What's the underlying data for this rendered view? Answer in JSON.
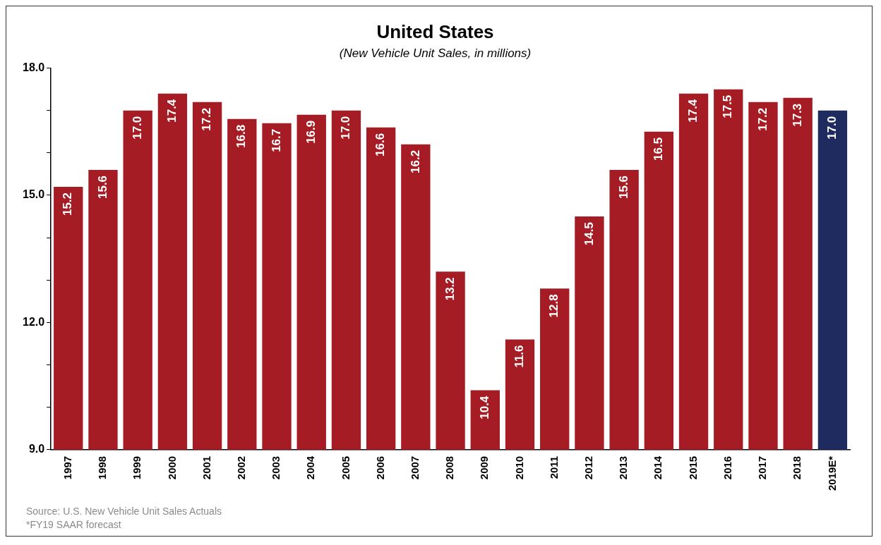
{
  "chart_data": {
    "type": "bar",
    "title": "United States",
    "subtitle": "(New Vehicle Unit Sales, in millions)",
    "categories": [
      "1997",
      "1998",
      "1999",
      "2000",
      "2001",
      "2002",
      "2003",
      "2004",
      "2005",
      "2006",
      "2007",
      "2008",
      "2009",
      "2010",
      "2011",
      "2012",
      "2013",
      "2014",
      "2015",
      "2016",
      "2017",
      "2018",
      "2019E*"
    ],
    "values": [
      15.2,
      15.6,
      17.0,
      17.4,
      17.2,
      16.8,
      16.7,
      16.9,
      17.0,
      16.6,
      16.2,
      13.2,
      10.4,
      11.6,
      12.8,
      14.5,
      15.6,
      16.5,
      17.4,
      17.5,
      17.2,
      17.3,
      17.0
    ],
    "colors": [
      "#a51c24",
      "#a51c24",
      "#a51c24",
      "#a51c24",
      "#a51c24",
      "#a51c24",
      "#a51c24",
      "#a51c24",
      "#a51c24",
      "#a51c24",
      "#a51c24",
      "#a51c24",
      "#a51c24",
      "#a51c24",
      "#a51c24",
      "#a51c24",
      "#a51c24",
      "#a51c24",
      "#a51c24",
      "#a51c24",
      "#a51c24",
      "#a51c24",
      "#1f2a5e"
    ],
    "ylim": [
      9,
      18
    ],
    "yticks": [
      {
        "value": 9,
        "label": "9.0"
      },
      {
        "value": 10,
        "label": null
      },
      {
        "value": 11,
        "label": null
      },
      {
        "value": 12,
        "label": "12.0"
      },
      {
        "value": 13,
        "label": null
      },
      {
        "value": 14,
        "label": null
      },
      {
        "value": 15,
        "label": "15.0"
      },
      {
        "value": 16,
        "label": null
      },
      {
        "value": 17,
        "label": null
      },
      {
        "value": 18,
        "label": "18.0"
      }
    ],
    "value_labels": [
      "15.2",
      "15.6",
      "17.0",
      "17.4",
      "17.2",
      "16.8",
      "16.7",
      "16.9",
      "17.0",
      "16.6",
      "16.2",
      "13.2",
      "10.4",
      "11.6",
      "12.8",
      "14.5",
      "15.6",
      "16.5",
      "17.4",
      "17.5",
      "17.2",
      "17.3",
      "17.0"
    ],
    "grid": false,
    "legend": false,
    "annotations": [
      "Source: U.S. New Vehicle Unit Sales Actuals",
      "*FY19 SAAR forecast"
    ]
  }
}
